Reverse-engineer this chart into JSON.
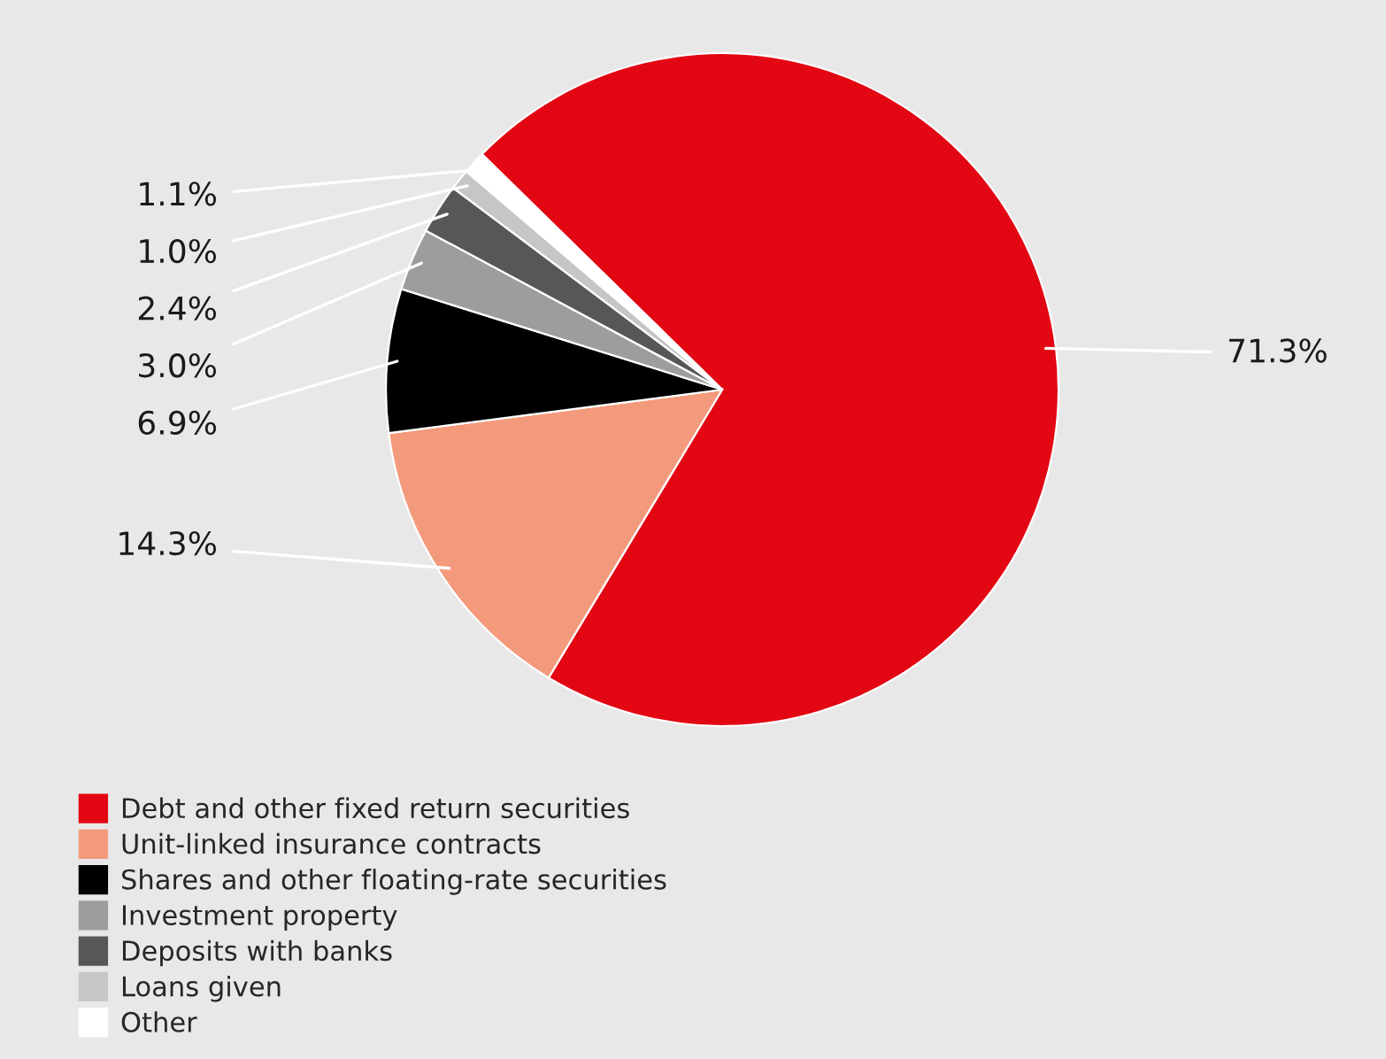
{
  "chart_data": {
    "type": "pie",
    "categories": [
      "Debt and other fixed return securities",
      "Unit-linked insurance contracts",
      "Shares and other floating-rate securities",
      "Investment property",
      "Deposits with banks",
      "Loans given",
      "Other"
    ],
    "values": [
      71.3,
      14.3,
      6.9,
      3.0,
      2.4,
      1.0,
      1.1
    ],
    "value_labels": [
      "71.3%",
      "14.3%",
      "6.9%",
      "3.0%",
      "2.4%",
      "1.0%",
      "1.1%"
    ],
    "colors": [
      "#e30613",
      "#f29a7b",
      "#000000",
      "#9d9d9c",
      "#575756",
      "#c6c6c6",
      "#ffffff"
    ],
    "legend": "bottom"
  }
}
